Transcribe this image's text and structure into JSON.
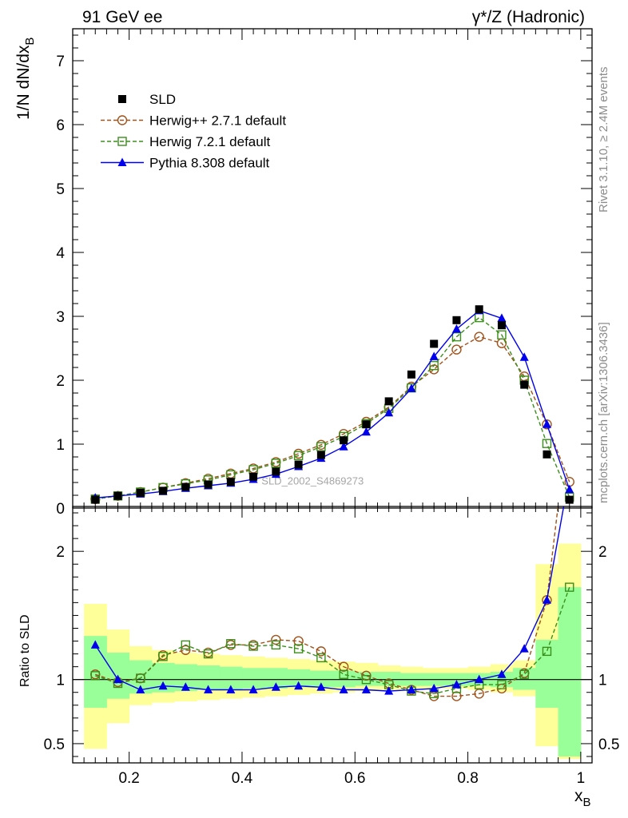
{
  "header": {
    "left_title": "91 GeV ee",
    "right_title": "γ*/Z (Hadronic)"
  },
  "side_labels": {
    "rivet": "Rivet 3.1.10, ≥ 2.4M events",
    "mcplots": "mcplots.cern.ch [arXiv:1306.3436]"
  },
  "colors": {
    "data": "#000000",
    "herwigpp": "#a0521a",
    "herwig7": "#3a8f1a",
    "pythia": "#0000ee",
    "band_outer": "#ffff99",
    "band_inner": "#99ff99"
  },
  "chart_data": [
    {
      "type": "scatter",
      "title": "",
      "watermark": "SLD_2002_S4869273",
      "ylabel": "1/N dN/dx",
      "ylabel_sub": "B",
      "xlim": [
        0.1,
        1.02
      ],
      "ylim": [
        0,
        7.5
      ],
      "y_ticks": [
        0,
        1,
        2,
        3,
        4,
        5,
        6,
        7
      ],
      "legend_position": "top-left",
      "x": [
        0.14,
        0.18,
        0.22,
        0.26,
        0.3,
        0.34,
        0.38,
        0.42,
        0.46,
        0.5,
        0.54,
        0.58,
        0.62,
        0.66,
        0.7,
        0.74,
        0.78,
        0.82,
        0.86,
        0.9,
        0.94,
        0.98
      ],
      "series": [
        {
          "name": "SLD",
          "style": "data",
          "values": [
            0.13,
            0.19,
            0.24,
            0.27,
            0.33,
            0.37,
            0.41,
            0.49,
            0.57,
            0.68,
            0.83,
            1.06,
            1.31,
            1.67,
            2.09,
            2.57,
            2.94,
            3.11,
            2.86,
            1.93,
            0.84,
            0.13
          ]
        },
        {
          "name": "Herwig++ 2.7.1 default",
          "style": "herwigpp",
          "values": [
            0.14,
            0.19,
            0.25,
            0.32,
            0.39,
            0.46,
            0.54,
            0.62,
            0.72,
            0.85,
            0.99,
            1.16,
            1.35,
            1.58,
            1.9,
            2.17,
            2.48,
            2.68,
            2.58,
            2.06,
            1.31,
            0.41
          ]
        },
        {
          "name": "Herwig 7.2.1 default",
          "style": "herwig7",
          "values": [
            0.14,
            0.19,
            0.25,
            0.32,
            0.38,
            0.44,
            0.52,
            0.6,
            0.7,
            0.82,
            0.96,
            1.12,
            1.32,
            1.56,
            1.88,
            2.23,
            2.68,
            2.98,
            2.71,
            2.0,
            1.01,
            0.17
          ]
        },
        {
          "name": "Pythia 8.308 default",
          "style": "pythia",
          "values": [
            0.16,
            0.19,
            0.22,
            0.26,
            0.31,
            0.35,
            0.39,
            0.45,
            0.53,
            0.65,
            0.78,
            0.96,
            1.19,
            1.49,
            1.87,
            2.37,
            2.8,
            3.09,
            2.97,
            2.36,
            1.31,
            0.29
          ]
        }
      ]
    },
    {
      "type": "line",
      "ylabel": "Ratio to SLD",
      "xlabel": "x",
      "xlabel_sub": "B",
      "xlim": [
        0.1,
        1.02
      ],
      "ylim": [
        0.35,
        2.35
      ],
      "y_ticks": [
        0.5,
        1,
        2
      ],
      "y_tick_labels": [
        "0.5",
        "1",
        "2"
      ],
      "x_ticks": [
        0.2,
        0.4,
        0.6,
        0.8,
        1.0
      ],
      "x_tick_labels": [
        "0.2",
        "0.4",
        "0.6",
        "0.8",
        "1"
      ],
      "x": [
        0.14,
        0.18,
        0.22,
        0.26,
        0.3,
        0.34,
        0.38,
        0.42,
        0.46,
        0.5,
        0.54,
        0.58,
        0.62,
        0.66,
        0.7,
        0.74,
        0.78,
        0.82,
        0.86,
        0.9,
        0.94,
        0.98
      ],
      "band_edges": [
        0.12,
        0.16,
        0.2,
        0.24,
        0.28,
        0.32,
        0.36,
        0.4,
        0.44,
        0.48,
        0.52,
        0.56,
        0.6,
        0.64,
        0.68,
        0.72,
        0.76,
        0.8,
        0.84,
        0.88,
        0.92,
        0.96,
        1.0
      ],
      "band_outer": [
        [
          0.46,
          1.59
        ],
        [
          0.66,
          1.39
        ],
        [
          0.8,
          1.26
        ],
        [
          0.82,
          1.23
        ],
        [
          0.83,
          1.21
        ],
        [
          0.84,
          1.2
        ],
        [
          0.85,
          1.19
        ],
        [
          0.86,
          1.18
        ],
        [
          0.87,
          1.17
        ],
        [
          0.88,
          1.16
        ],
        [
          0.89,
          1.15
        ],
        [
          0.9,
          1.14
        ],
        [
          0.91,
          1.13
        ],
        [
          0.92,
          1.11
        ],
        [
          0.93,
          1.1
        ],
        [
          0.93,
          1.09
        ],
        [
          0.93,
          1.09
        ],
        [
          0.92,
          1.1
        ],
        [
          0.9,
          1.12
        ],
        [
          0.87,
          1.15
        ],
        [
          0.48,
          1.9
        ],
        [
          0.38,
          2.06
        ]
      ],
      "band_inner": [
        [
          0.78,
          1.34
        ],
        [
          0.85,
          1.21
        ],
        [
          0.89,
          1.15
        ],
        [
          0.9,
          1.13
        ],
        [
          0.91,
          1.12
        ],
        [
          0.92,
          1.11
        ],
        [
          0.92,
          1.1
        ],
        [
          0.93,
          1.09
        ],
        [
          0.93,
          1.09
        ],
        [
          0.94,
          1.08
        ],
        [
          0.94,
          1.07
        ],
        [
          0.94,
          1.07
        ],
        [
          0.95,
          1.06
        ],
        [
          0.95,
          1.06
        ],
        [
          0.95,
          1.05
        ],
        [
          0.95,
          1.05
        ],
        [
          0.95,
          1.05
        ],
        [
          0.95,
          1.05
        ],
        [
          0.94,
          1.06
        ],
        [
          0.92,
          1.09
        ],
        [
          0.78,
          1.31
        ],
        [
          0.4,
          1.72
        ]
      ],
      "series": [
        {
          "name": "Herwig++ 2.7.1 default",
          "style": "herwigpp",
          "values": [
            1.04,
            0.98,
            1.01,
            1.19,
            1.23,
            1.21,
            1.27,
            1.27,
            1.31,
            1.3,
            1.22,
            1.1,
            1.03,
            0.97,
            0.92,
            0.87,
            0.87,
            0.89,
            0.93,
            1.05,
            1.62,
            3.1
          ]
        },
        {
          "name": "Herwig 7.2.1 default",
          "style": "herwig7",
          "values": [
            1.03,
            0.97,
            1.01,
            1.18,
            1.27,
            1.2,
            1.28,
            1.26,
            1.27,
            1.24,
            1.17,
            1.04,
            1.0,
            0.96,
            0.91,
            0.89,
            0.93,
            0.96,
            0.96,
            1.04,
            1.22,
            1.72
          ]
        },
        {
          "name": "Pythia 8.308 default",
          "style": "pythia",
          "values": [
            1.27,
            1.0,
            0.92,
            0.95,
            0.94,
            0.92,
            0.92,
            0.92,
            0.94,
            0.95,
            0.94,
            0.92,
            0.92,
            0.91,
            0.92,
            0.93,
            0.96,
            1.0,
            1.04,
            1.24,
            1.62,
            2.6
          ]
        }
      ]
    }
  ]
}
